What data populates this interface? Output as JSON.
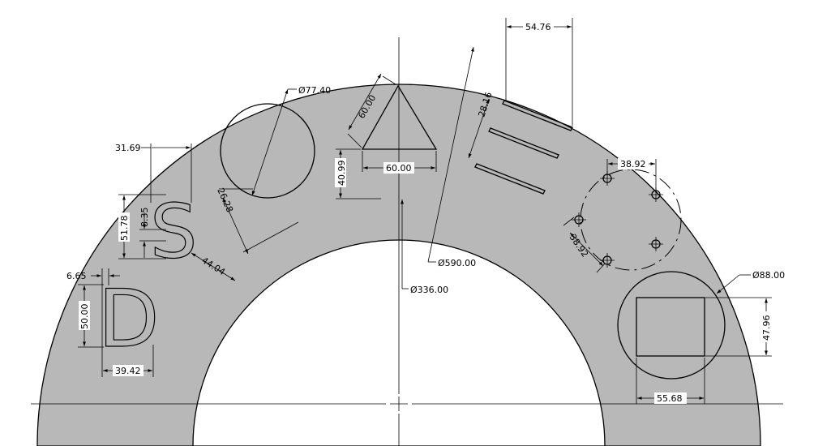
{
  "drawing": {
    "colors": {
      "part_fill": "#b8b8b8",
      "line": "#000000",
      "background": "#ffffff"
    },
    "letters": {
      "s": "S",
      "d": "D"
    },
    "dimensions": {
      "outer_diameter": "Ø590.00",
      "inner_diameter": "Ø336.00",
      "circle_diameter": "Ø77.40",
      "circle_offset": "26.28",
      "triangle_side": "60.00",
      "triangle_base": "60.00",
      "triangle_height": "40.99",
      "slots_width": "54.76",
      "slots_pitch": "28.16",
      "s_width": "31.69",
      "s_height": "51.78",
      "s_stroke": "8.35",
      "s_offset": "44.04",
      "d_height": "50.00",
      "d_stroke": "6.65",
      "d_width": "39.42",
      "holes_h_spacing": "38.92",
      "holes_diag_spacing": "38.92",
      "boss_diameter": "Ø88.00",
      "rect_height": "47.96",
      "rect_width": "55.68"
    }
  }
}
